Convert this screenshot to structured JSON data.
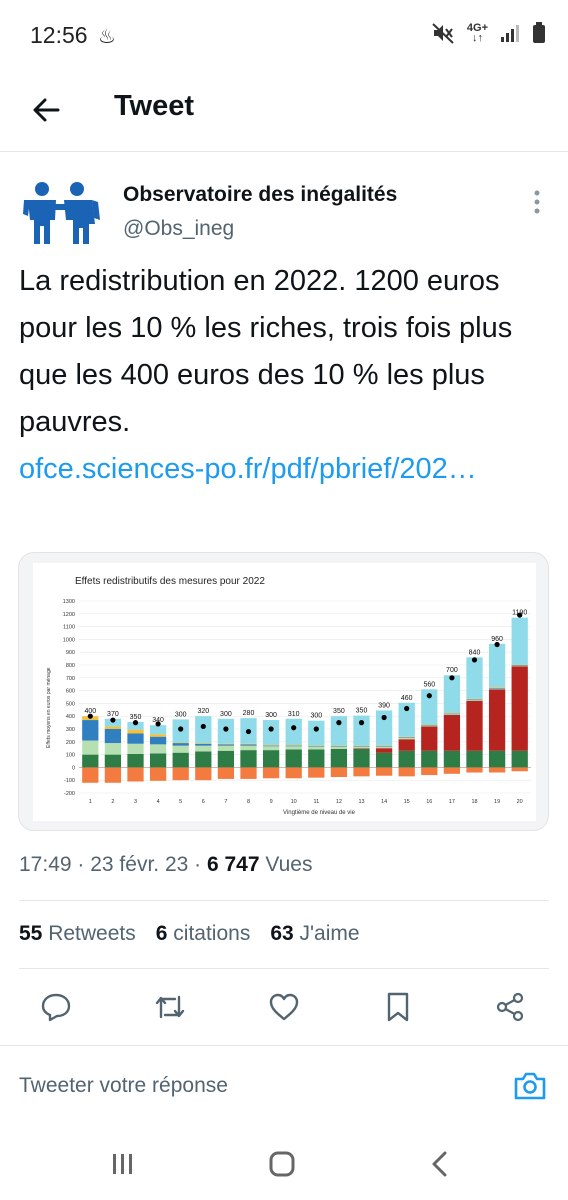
{
  "status_bar": {
    "time": "12:56",
    "extra_glyph": "♨",
    "network_top": "4G+",
    "network_bottom": "↓↑",
    "icons": [
      "mute-icon",
      "signal-icon",
      "battery-icon"
    ]
  },
  "header": {
    "title": "Tweet"
  },
  "author": {
    "name": "Observatoire des inégalités",
    "handle": "@Obs_ineg"
  },
  "tweet": {
    "text": "La redistribution en 2022.  1200 euros pour les 10 % les riches, trois fois plus que les 400 euros des 10 % les plus pauvres.",
    "link": "ofce.sciences-po.fr/pdf/pbrief/202…"
  },
  "meta": {
    "time": "17:49",
    "date": "23 févr. 23",
    "views_count": "6 747",
    "views_label": "Vues"
  },
  "stats": {
    "retweets_count": "55",
    "retweets_label": "Retweets",
    "quotes_count": "6",
    "quotes_label": "citations",
    "likes_count": "63",
    "likes_label": "J'aime"
  },
  "reply": {
    "placeholder": "Tweeter votre réponse"
  },
  "colors": {
    "accent": "#1d9bf0",
    "bar_orange": "#f47b3f",
    "bar_green": "#2e7d46",
    "bar_light_green": "#b7e0b2",
    "bar_blue": "#2f7fc1",
    "bar_yellow": "#f5c03e",
    "bar_cyan": "#8fdbea",
    "bar_red": "#b5241e"
  },
  "chart_data": {
    "type": "bar",
    "title": "Effets redistributifs des mesures pour 2022",
    "xlabel": "Vingtième de niveau de vie",
    "ylabel": "Effets moyens en euros par ménage",
    "ylim": [
      -200,
      1300
    ],
    "yticks": [
      -200,
      -100,
      0,
      100,
      200,
      300,
      400,
      500,
      600,
      700,
      800,
      900,
      1000,
      1100,
      1200,
      1300
    ],
    "grid": true,
    "categories": [
      "1",
      "2",
      "3",
      "4",
      "5",
      "6",
      "7",
      "8",
      "9",
      "10",
      "11",
      "12",
      "13",
      "14",
      "15",
      "16",
      "17",
      "18",
      "19",
      "20"
    ],
    "net_total_labels": [
      400,
      370,
      350,
      340,
      300,
      320,
      300,
      280,
      300,
      310,
      300,
      350,
      350,
      390,
      460,
      560,
      700,
      840,
      960,
      1190
    ],
    "series": [
      {
        "color": "bar_orange",
        "values": [
          -120,
          -120,
          -110,
          -105,
          -100,
          -100,
          -90,
          -90,
          -85,
          -85,
          -80,
          -75,
          -70,
          -65,
          -70,
          -60,
          -50,
          -40,
          -40,
          -30
        ]
      },
      {
        "color": "bar_green",
        "values": [
          100,
          100,
          105,
          110,
          115,
          125,
          130,
          135,
          135,
          140,
          140,
          145,
          145,
          115,
          130,
          130,
          130,
          130,
          130,
          130
        ]
      },
      {
        "color": "bar_red",
        "values": [
          0,
          0,
          0,
          0,
          0,
          0,
          0,
          0,
          0,
          0,
          0,
          0,
          5,
          35,
          90,
          190,
          280,
          390,
          480,
          660
        ]
      },
      {
        "color": "bar_light_green",
        "values": [
          110,
          90,
          80,
          70,
          55,
          45,
          40,
          35,
          30,
          25,
          20,
          15,
          10,
          10,
          10,
          5,
          5,
          5,
          5,
          5
        ]
      },
      {
        "color": "bar_blue",
        "values": [
          160,
          110,
          80,
          60,
          20,
          15,
          10,
          10,
          5,
          5,
          5,
          5,
          5,
          5,
          5,
          5,
          5,
          5,
          5,
          5
        ]
      },
      {
        "color": "bar_yellow",
        "values": [
          30,
          20,
          30,
          20,
          5,
          5,
          5,
          5,
          5,
          5,
          5,
          5,
          5,
          5,
          5,
          5,
          5,
          5,
          5,
          5
        ]
      },
      {
        "color": "bar_cyan",
        "values": [
          0,
          60,
          60,
          70,
          180,
          210,
          195,
          200,
          195,
          205,
          195,
          230,
          235,
          275,
          265,
          275,
          295,
          325,
          340,
          365
        ]
      }
    ]
  }
}
